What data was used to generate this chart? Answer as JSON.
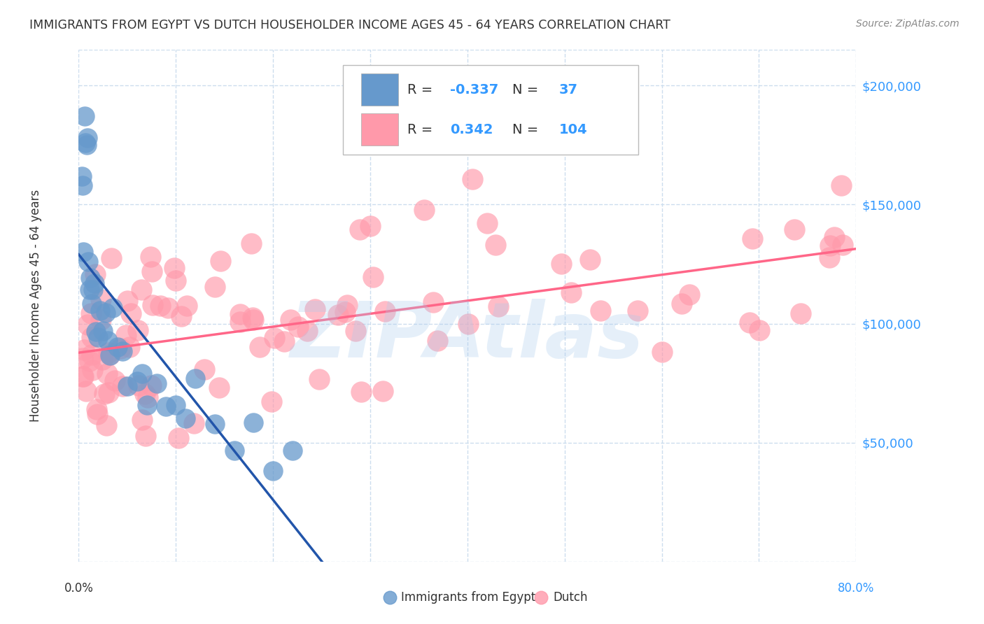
{
  "title": "IMMIGRANTS FROM EGYPT VS DUTCH HOUSEHOLDER INCOME AGES 45 - 64 YEARS CORRELATION CHART",
  "source": "Source: ZipAtlas.com",
  "ylabel": "Householder Income Ages 45 - 64 years",
  "right_ytick_labels": [
    "$200,000",
    "$150,000",
    "$100,000",
    "$50,000"
  ],
  "right_ytick_values": [
    200000,
    150000,
    100000,
    50000
  ],
  "ylim": [
    0,
    215000
  ],
  "xlim": [
    0.0,
    0.8
  ],
  "blue_R": "-0.337",
  "blue_N": "37",
  "pink_R": "0.342",
  "pink_N": "104",
  "legend_label1": "Immigrants from Egypt",
  "legend_label2": "Dutch",
  "blue_color": "#6699CC",
  "pink_color": "#FF99AA",
  "blue_line_color": "#2255AA",
  "pink_line_color": "#FF6688",
  "watermark": "ZIPAtlas",
  "watermark_color": "#AACCEE",
  "grid_color": "#CCDDEE",
  "text_color": "#333333",
  "source_color": "#888888",
  "right_tick_color": "#3399FF"
}
